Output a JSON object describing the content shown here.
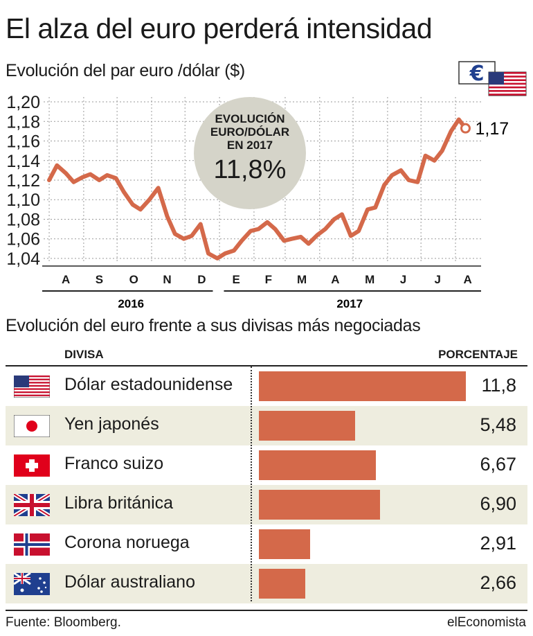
{
  "header": {
    "title": "El alza del euro perderá intensidad",
    "subtitle": "Evolución del par euro /dólar ($)"
  },
  "badge": {
    "line1": "EVOLUCIÓN",
    "line2": "EURO/DÓLAR",
    "line3": "EN 2017",
    "value": "11,8%"
  },
  "chart_data": [
    {
      "type": "line",
      "title": "Evolución del par euro /dólar ($)",
      "xlabel": "",
      "ylabel": "",
      "ylim": [
        1.035,
        1.205
      ],
      "yticks": [
        1.04,
        1.06,
        1.08,
        1.1,
        1.12,
        1.14,
        1.16,
        1.18,
        1.2
      ],
      "ytick_labels": [
        "1,04",
        "1,06",
        "1,08",
        "1,10",
        "1,12",
        "1,14",
        "1,16",
        "1,18",
        "1,20"
      ],
      "month_labels": [
        "A",
        "S",
        "O",
        "N",
        "D",
        "E",
        "F",
        "M",
        "A",
        "M",
        "J",
        "J",
        "A"
      ],
      "year_labels": [
        "2016",
        "2017"
      ],
      "grid": true,
      "last_value_label": "1,17",
      "series": [
        {
          "name": "",
          "x": [
            "2016-08-01",
            "2016-08-08",
            "2016-08-16",
            "2016-08-23",
            "2016-08-31",
            "2016-09-07",
            "2016-09-15",
            "2016-09-22",
            "2016-09-30",
            "2016-10-07",
            "2016-10-15",
            "2016-10-22",
            "2016-10-30",
            "2016-11-07",
            "2016-11-15",
            "2016-11-22",
            "2016-11-30",
            "2016-12-07",
            "2016-12-15",
            "2016-12-22",
            "2016-12-30",
            "2017-01-06",
            "2017-01-14",
            "2017-01-21",
            "2017-01-29",
            "2017-02-05",
            "2017-02-13",
            "2017-02-20",
            "2017-02-28",
            "2017-03-07",
            "2017-03-15",
            "2017-03-22",
            "2017-03-30",
            "2017-04-06",
            "2017-04-14",
            "2017-04-21",
            "2017-04-29",
            "2017-05-06",
            "2017-05-14",
            "2017-05-21",
            "2017-05-29",
            "2017-06-05",
            "2017-06-13",
            "2017-06-20",
            "2017-06-28",
            "2017-07-05",
            "2017-07-13",
            "2017-07-20",
            "2017-07-28",
            "2017-08-04",
            "2017-08-10"
          ],
          "values": [
            1.12,
            1.135,
            1.127,
            1.118,
            1.123,
            1.126,
            1.12,
            1.125,
            1.122,
            1.108,
            1.095,
            1.09,
            1.1,
            1.112,
            1.083,
            1.065,
            1.06,
            1.063,
            1.075,
            1.045,
            1.04,
            1.045,
            1.048,
            1.058,
            1.068,
            1.07,
            1.077,
            1.07,
            1.058,
            1.06,
            1.062,
            1.055,
            1.064,
            1.07,
            1.08,
            1.085,
            1.063,
            1.068,
            1.09,
            1.092,
            1.115,
            1.125,
            1.13,
            1.12,
            1.118,
            1.145,
            1.14,
            1.15,
            1.17,
            1.182,
            1.173
          ]
        }
      ]
    },
    {
      "type": "bar",
      "title": "Evolución del euro frente a sus divisas más negociadas",
      "xlabel": "PORCENTAJE",
      "ylabel": "DIVISA",
      "xlim": [
        0,
        11.8
      ],
      "categories": [
        "Dólar estadounidense",
        "Yen japonés",
        "Franco suizo",
        "Libra británica",
        "Corona noruega",
        "Dólar australiano"
      ],
      "values": [
        11.8,
        5.48,
        6.67,
        6.9,
        2.91,
        2.66
      ],
      "value_labels": [
        "11,8",
        "5,48",
        "6,67",
        "6,90",
        "2,91",
        "2,66"
      ],
      "flag_icons": [
        "us-flag-icon",
        "japan-flag-icon",
        "switzerland-flag-icon",
        "uk-flag-icon",
        "norway-flag-icon",
        "australia-flag-icon"
      ],
      "bar_color": "#d4694a"
    }
  ],
  "table": {
    "col_divisa": "DIVISA",
    "col_pct": "PORCENTAJE"
  },
  "section2": {
    "title": "Evolución del euro frente a sus divisas más negociadas"
  },
  "colors": {
    "line": "#d4694a",
    "bar": "#d4694a",
    "badge": "#d5d4c9",
    "row_shade": "#eeeddf",
    "grid": "#9a9a9a"
  },
  "top_icons": [
    "euro-sign-icon",
    "us-flag-icon"
  ],
  "euro_symbol": "€",
  "footer": {
    "source": "Fuente: Bloomberg.",
    "brand": "elEconomista"
  }
}
